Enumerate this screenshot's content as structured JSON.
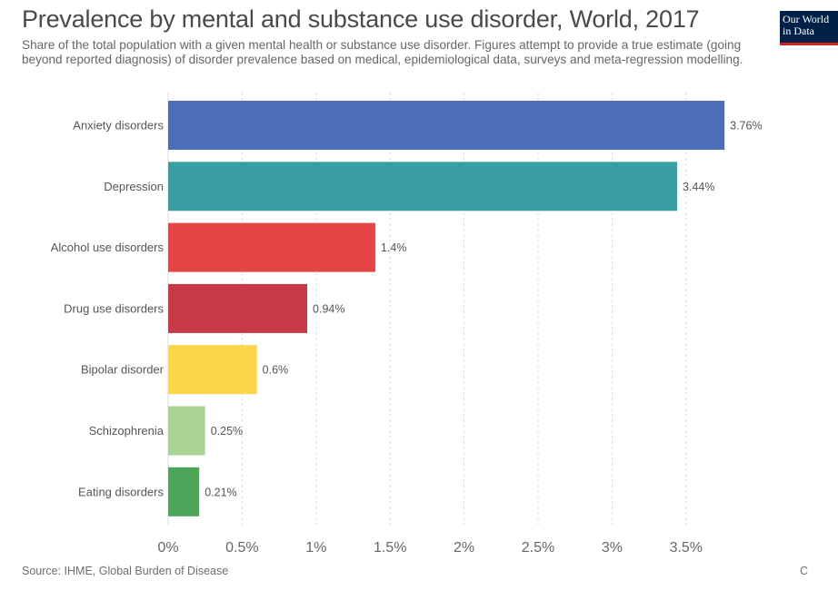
{
  "header": {
    "title": "Prevalence by mental and substance use disorder, World, 2017",
    "subtitle": "Share of the total population with a given mental health or substance use disorder. Figures attempt to provide a true estimate (going beyond reported diagnosis) of disorder prevalence based on medical, epidemiological data, surveys and meta-regression modelling."
  },
  "logo": {
    "text": "Our World\nin Data",
    "bg_color": "#002147",
    "accent_color": "#ce261e"
  },
  "footer": {
    "source": "Source: IHME, Global Burden of Disease",
    "corner": "C"
  },
  "chart_data": {
    "type": "bar",
    "orientation": "horizontal",
    "title": "Prevalence by mental and substance use disorder, World, 2017",
    "xlabel": "",
    "ylabel": "",
    "xlim": [
      0,
      3.76
    ],
    "grid": true,
    "categories": [
      "Anxiety disorders",
      "Depression",
      "Alcohol use disorders",
      "Drug use disorders",
      "Bipolar disorder",
      "Schizophrenia",
      "Eating disorders"
    ],
    "values": [
      3.76,
      3.44,
      1.4,
      0.94,
      0.6,
      0.25,
      0.21
    ],
    "value_labels": [
      "3.76%",
      "3.44%",
      "1.4%",
      "0.94%",
      "0.6%",
      "0.25%",
      "0.21%"
    ],
    "colors": [
      "#4d6eb7",
      "#3a9fa3",
      "#e64545",
      "#c73a45",
      "#fdd548",
      "#a9d495",
      "#4ea55a"
    ],
    "x_ticks": [
      0,
      0.5,
      1,
      1.5,
      2,
      2.5,
      3,
      3.5
    ],
    "x_tick_labels": [
      "0%",
      "0.5%",
      "1%",
      "1.5%",
      "2%",
      "2.5%",
      "3%",
      "3.5%"
    ]
  }
}
